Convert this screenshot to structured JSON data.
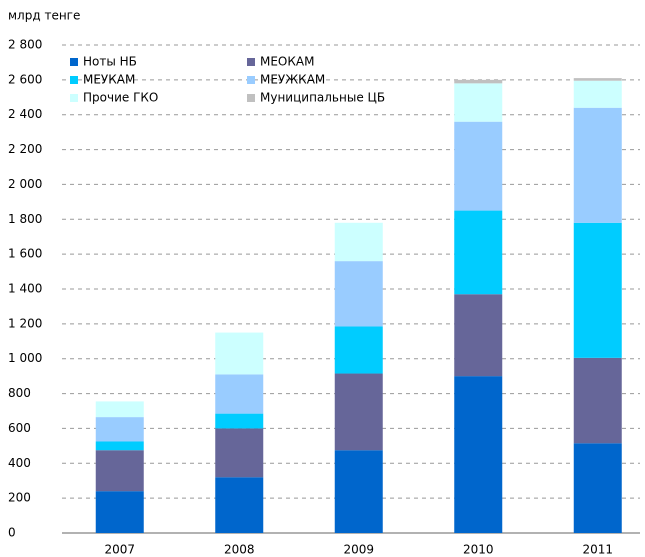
{
  "chart_data": {
    "type": "stacked_bar",
    "y_label": "млрд тенге",
    "categories": [
      "2007",
      "2008",
      "2009",
      "2010",
      "2011"
    ],
    "series": [
      {
        "name": "Ноты НБ",
        "color": "#0066cc",
        "values": [
          240,
          320,
          475,
          900,
          515
        ]
      },
      {
        "name": "МЕОКАМ",
        "color": "#666699",
        "values": [
          235,
          280,
          440,
          470,
          490
        ]
      },
      {
        "name": "МЕУКАМ",
        "color": "#00ccff",
        "values": [
          50,
          85,
          270,
          480,
          775
        ]
      },
      {
        "name": "МЕУЖКАМ",
        "color": "#99ccff",
        "values": [
          140,
          225,
          375,
          510,
          660
        ]
      },
      {
        "name": "Прочие ГКО",
        "color": "#ccffff",
        "values": [
          90,
          240,
          220,
          220,
          155
        ]
      },
      {
        "name": "Муниципальные ЦБ",
        "color": "#c0c0c0",
        "values": [
          0,
          0,
          0,
          20,
          15
        ]
      }
    ],
    "ylim": [
      0,
      2800
    ],
    "yticks": [
      0,
      200,
      400,
      600,
      800,
      {
        "value": 1000,
        "label": "1 000"
      },
      {
        "value": 1200,
        "label": "1 200"
      },
      {
        "value": 1400,
        "label": "1 400"
      },
      {
        "value": 1600,
        "label": "1 600"
      },
      {
        "value": 1800,
        "label": "1 800"
      },
      {
        "value": 2000,
        "label": "2 000"
      },
      {
        "value": 2200,
        "label": "2 200"
      },
      {
        "value": 2400,
        "label": "2 400"
      },
      {
        "value": 2600,
        "label": "2 600"
      },
      {
        "value": 2800,
        "label": "2 800"
      }
    ],
    "grid": true,
    "legend": "top-left"
  }
}
